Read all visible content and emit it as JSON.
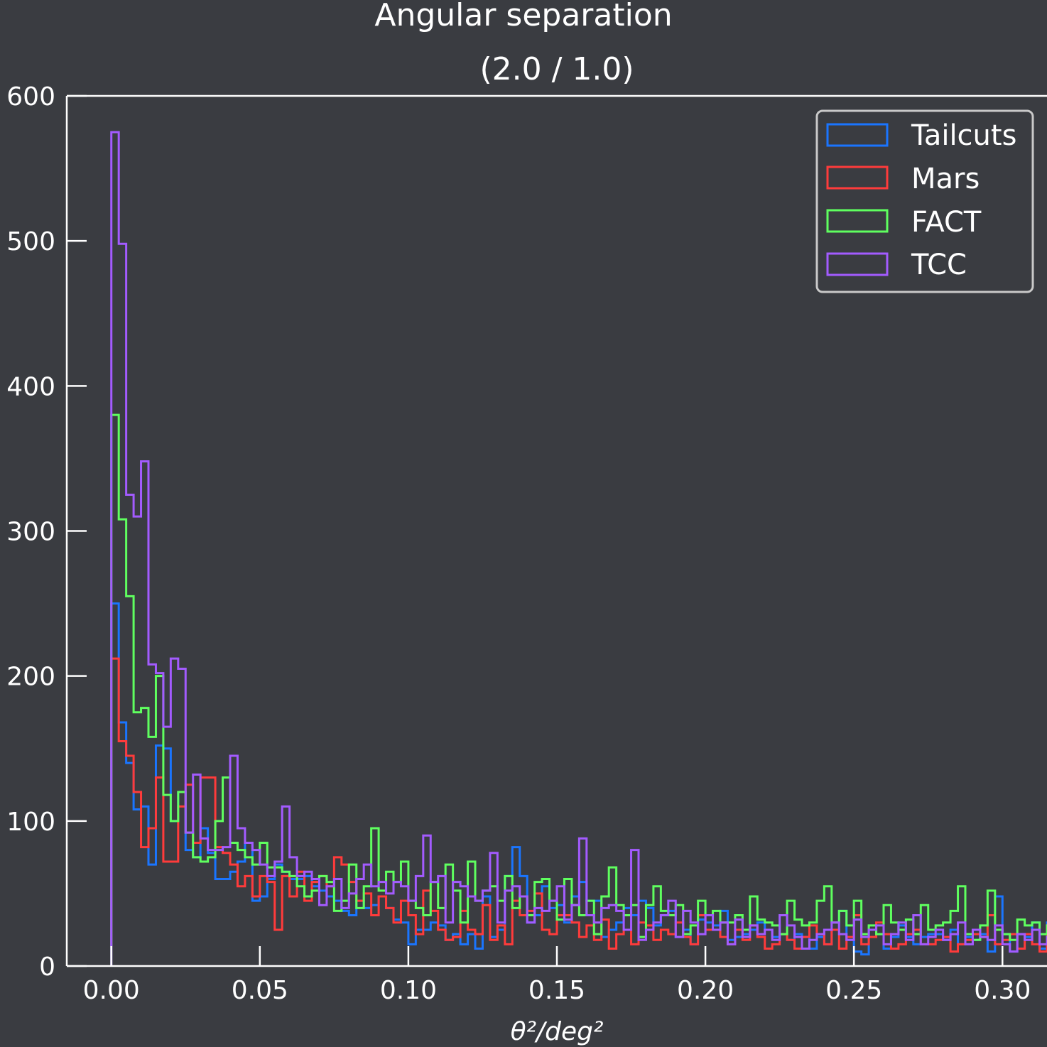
{
  "chart_data": {
    "type": "histogram",
    "title": "Angular separation",
    "subtitle": "(2.0 / 1.0)",
    "xlabel": "θ²/deg²",
    "ylabel": "",
    "xlim": [
      -0.015,
      0.315
    ],
    "ylim": [
      0,
      600
    ],
    "bin_edges_range": [
      0.0,
      0.3
    ],
    "bin_width": 0.0025,
    "x_ticks": [
      "0.00",
      "0.05",
      "0.10",
      "0.15",
      "0.20",
      "0.25",
      "0.30"
    ],
    "y_ticks": [
      "0",
      "100",
      "200",
      "300",
      "400",
      "500",
      "600"
    ],
    "legend_position": "top-right",
    "grid": false,
    "series": [
      {
        "name": "Tailcuts",
        "color": "#1a75ff",
        "values": [
          250,
          168,
          140,
          108,
          110,
          70,
          152,
          150,
          100,
          120,
          80,
          75,
          95,
          78,
          60,
          60,
          65,
          72,
          85,
          45,
          48,
          60,
          70,
          65,
          60,
          60,
          62,
          55,
          52,
          48,
          45,
          38,
          35,
          45,
          40,
          42,
          48,
          40,
          32,
          30,
          15,
          25,
          25,
          30,
          28,
          18,
          22,
          15,
          22,
          12,
          48,
          20,
          25,
          62,
          82,
          62,
          30,
          35,
          55,
          40,
          42,
          30,
          48,
          58,
          45,
          45,
          20,
          25,
          30,
          40,
          35,
          45,
          40,
          28,
          35,
          38,
          20,
          25,
          15,
          32,
          30,
          28,
          38,
          18,
          20,
          22,
          25,
          30,
          25,
          20,
          22,
          18,
          22,
          20,
          12,
          20,
          15,
          25,
          38,
          18,
          10,
          8,
          25,
          22,
          12,
          20,
          28,
          20,
          15,
          20,
          22,
          22,
          18,
          25,
          15,
          20,
          18,
          22,
          10,
          48,
          22,
          10,
          22,
          20,
          30,
          12,
          30,
          22,
          25,
          20,
          12,
          18,
          15,
          15,
          22,
          15,
          18,
          15,
          20,
          18,
          20,
          20,
          20,
          15,
          22,
          18,
          12,
          15,
          20,
          25,
          15,
          15,
          20,
          15,
          15,
          10,
          20,
          20,
          12,
          18,
          25,
          15,
          15,
          15,
          18,
          28,
          22,
          35,
          20,
          20,
          25,
          15,
          25,
          20,
          18,
          22,
          18,
          15,
          20,
          15,
          15,
          22,
          15,
          20,
          18,
          20,
          18,
          15,
          35,
          25,
          18,
          20,
          10,
          18,
          35,
          22,
          20,
          15,
          20,
          15,
          12,
          15,
          22,
          15,
          18,
          25,
          20,
          28,
          25,
          20,
          22,
          18,
          25,
          15,
          22,
          22,
          15,
          20,
          20,
          18,
          15,
          12,
          18,
          20,
          22,
          15,
          10,
          12,
          22,
          15,
          25,
          18,
          20,
          20,
          22,
          15
        ]
      },
      {
        "name": "Mars",
        "color": "#ff3b3b",
        "values": [
          212,
          155,
          145,
          120,
          82,
          95,
          130,
          72,
          72,
          110,
          125,
          85,
          130,
          130,
          82,
          78,
          70,
          55,
          62,
          48,
          62,
          58,
          25,
          62,
          48,
          65,
          45,
          58,
          62,
          55,
          75,
          70,
          58,
          45,
          50,
          35,
          48,
          40,
          30,
          45,
          35,
          22,
          52,
          38,
          25,
          18,
          20,
          38,
          25,
          22,
          42,
          18,
          28,
          15,
          45,
          35,
          38,
          50,
          25,
          22,
          35,
          35,
          30,
          20,
          28,
          18,
          32,
          12,
          22,
          25,
          15,
          30,
          28,
          18,
          25,
          22,
          30,
          20,
          15,
          35,
          25,
          25,
          20,
          15,
          25,
          18,
          28,
          20,
          12,
          15,
          22,
          18,
          12,
          20,
          28,
          22,
          15,
          25,
          12,
          20,
          35,
          15,
          20,
          30,
          22,
          12,
          15,
          22,
          25,
          15,
          15,
          18,
          20,
          10,
          15,
          18,
          22,
          20,
          35,
          15,
          18,
          22,
          12,
          22,
          15,
          10,
          28,
          22,
          10,
          15,
          25,
          20,
          15,
          25,
          15,
          22,
          32,
          18,
          12,
          15,
          20,
          15,
          22,
          18,
          15,
          28,
          22,
          18,
          12,
          20,
          25,
          15,
          20,
          15,
          20,
          30,
          12,
          18,
          20,
          15,
          25,
          55,
          15,
          20,
          10,
          25,
          18,
          15,
          20,
          28,
          20,
          15,
          22,
          10,
          25,
          18,
          20,
          15,
          12,
          20,
          22,
          18,
          25,
          20,
          15,
          28,
          22,
          15,
          12,
          20,
          25,
          15,
          18,
          20,
          25,
          15,
          12,
          22,
          18,
          15,
          20,
          25,
          20,
          15,
          22,
          18,
          15,
          20,
          25,
          18,
          20,
          15,
          12,
          22,
          18,
          15,
          20,
          25,
          18,
          20,
          22,
          15,
          20,
          18,
          22,
          15,
          20,
          18,
          25,
          12,
          20,
          22,
          18,
          15,
          20,
          22
        ]
      },
      {
        "name": "FACT",
        "color": "#5fff5f",
        "values": [
          380,
          308,
          255,
          175,
          178,
          158,
          200,
          118,
          100,
          120,
          92,
          75,
          72,
          75,
          100,
          130,
          85,
          80,
          75,
          70,
          85,
          68,
          68,
          65,
          62,
          55,
          48,
          52,
          62,
          58,
          38,
          45,
          70,
          40,
          55,
          95,
          52,
          65,
          58,
          72,
          45,
          40,
          35,
          58,
          40,
          70,
          52,
          30,
          72,
          45,
          52,
          55,
          45,
          62,
          40,
          48,
          35,
          58,
          60,
          45,
          32,
          60,
          42,
          35,
          45,
          22,
          48,
          68,
          42,
          35,
          42,
          20,
          42,
          55,
          38,
          35,
          42,
          22,
          28,
          45,
          35,
          38,
          30,
          30,
          35,
          25,
          48,
          32,
          30,
          28,
          22,
          45,
          32,
          28,
          30,
          45,
          55,
          30,
          38,
          28,
          45,
          22,
          28,
          22,
          42,
          30,
          25,
          32,
          22,
          42,
          25,
          28,
          30,
          38,
          55,
          22,
          18,
          28,
          52,
          25,
          22,
          18,
          32,
          28,
          30,
          22,
          28,
          35,
          25,
          20,
          22,
          30,
          18,
          22,
          25,
          20,
          22,
          15,
          25,
          22,
          30,
          22,
          18,
          15,
          28,
          22,
          22,
          15,
          48,
          50,
          20,
          15,
          28,
          25,
          18,
          22,
          15,
          25,
          20,
          25,
          22,
          15,
          15,
          22,
          18,
          20,
          12,
          25,
          20,
          15,
          18,
          22,
          25,
          28,
          15,
          22,
          18,
          20,
          15,
          25,
          28,
          18,
          20,
          22,
          30,
          18,
          25,
          15,
          20,
          22,
          28,
          15,
          20,
          18,
          25,
          38,
          22,
          15,
          20,
          25,
          18,
          22,
          15,
          20,
          28,
          18,
          22,
          25,
          15,
          20,
          18,
          22,
          25,
          18,
          15,
          20,
          22,
          18,
          25,
          20,
          15,
          22,
          18,
          25,
          20,
          15,
          18,
          22,
          20,
          25,
          15,
          18,
          22,
          20,
          18,
          15
        ]
      },
      {
        "name": "TCC",
        "color": "#a35bff",
        "values": [
          575,
          498,
          325,
          310,
          348,
          208,
          202,
          165,
          212,
          205,
          92,
          132,
          88,
          80,
          80,
          82,
          145,
          95,
          85,
          80,
          70,
          62,
          72,
          110,
          75,
          62,
          65,
          60,
          42,
          55,
          60,
          40,
          50,
          60,
          70,
          55,
          58,
          50,
          58,
          55,
          45,
          62,
          90,
          58,
          62,
          30,
          58,
          55,
          48,
          45,
          52,
          78,
          30,
          52,
          55,
          48,
          30,
          40,
          38,
          45,
          55,
          32,
          42,
          88,
          35,
          30,
          40,
          42,
          38,
          25,
          80,
          18,
          25,
          30,
          35,
          45,
          20,
          38,
          30,
          22,
          35,
          25,
          30,
          15,
          32,
          20,
          28,
          22,
          25,
          18,
          35,
          28,
          20,
          12,
          18,
          22,
          25,
          30,
          22,
          18,
          32,
          20,
          25,
          28,
          15,
          22,
          30,
          18,
          35,
          15,
          20,
          25,
          18,
          22,
          30,
          15,
          25,
          20,
          18,
          28,
          15,
          10,
          22,
          18,
          25,
          15,
          20,
          30,
          15,
          22,
          18,
          25,
          12,
          20,
          28,
          15,
          22,
          18,
          25,
          30,
          15,
          20,
          22,
          18,
          25,
          28,
          15,
          20,
          22,
          18,
          25,
          15,
          20,
          28,
          22,
          18,
          15,
          25,
          20,
          22,
          28,
          15,
          18,
          22,
          25,
          20,
          15,
          18,
          25,
          22,
          20,
          15,
          28,
          18,
          22,
          25,
          15,
          20,
          18,
          22,
          28,
          15,
          20,
          25,
          18,
          22,
          15,
          20,
          25,
          18,
          22,
          28,
          15,
          20,
          22,
          18,
          25,
          15,
          20,
          22,
          28,
          18,
          15,
          25,
          20,
          22,
          18,
          15,
          25,
          20,
          22,
          28,
          18,
          15,
          20,
          25,
          22,
          18,
          15,
          20,
          25,
          22,
          28,
          18,
          15,
          20,
          22,
          25,
          18,
          15,
          20,
          30,
          22,
          18,
          15,
          25,
          32
        ]
      }
    ]
  }
}
